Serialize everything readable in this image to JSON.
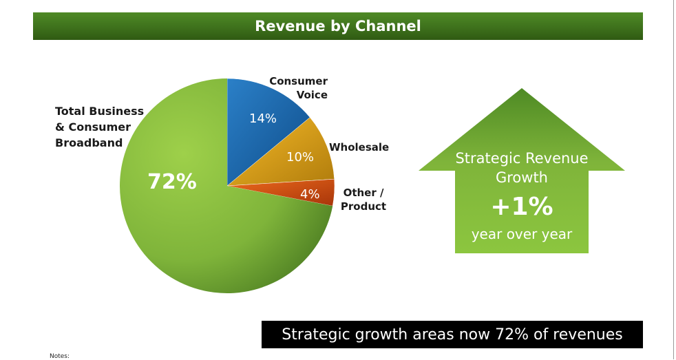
{
  "chart_data": {
    "type": "pie",
    "title": "Revenue by Channel",
    "unit": "%",
    "slices": [
      {
        "name": "Consumer Voice",
        "value": 14,
        "label": "14%",
        "color": "#1f6cb0"
      },
      {
        "name": "Wholesale",
        "value": 10,
        "label": "10%",
        "color": "#e6a51a"
      },
      {
        "name": "Other / Product",
        "value": 4,
        "label": "4%",
        "color": "#d9540f"
      },
      {
        "name": "Total Business & Consumer Broadband",
        "value": 72,
        "label": "72%",
        "color": "#8cc63f"
      }
    ]
  },
  "legend": {
    "consumer_voice_line1": "Consumer",
    "consumer_voice_line2": "Voice",
    "wholesale": "Wholesale",
    "other_line1": "Other /",
    "other_line2": "Product",
    "broadband_line1": "Total Business",
    "broadband_line2": "& Consumer",
    "broadband_line3": "Broadband"
  },
  "callout": {
    "line1": "Strategic Revenue",
    "line2": "Growth",
    "value": "+1%",
    "subtitle": "year over year"
  },
  "banner": {
    "text": "Strategic growth areas now 72% of revenues"
  },
  "notes": {
    "label": "Notes:"
  }
}
